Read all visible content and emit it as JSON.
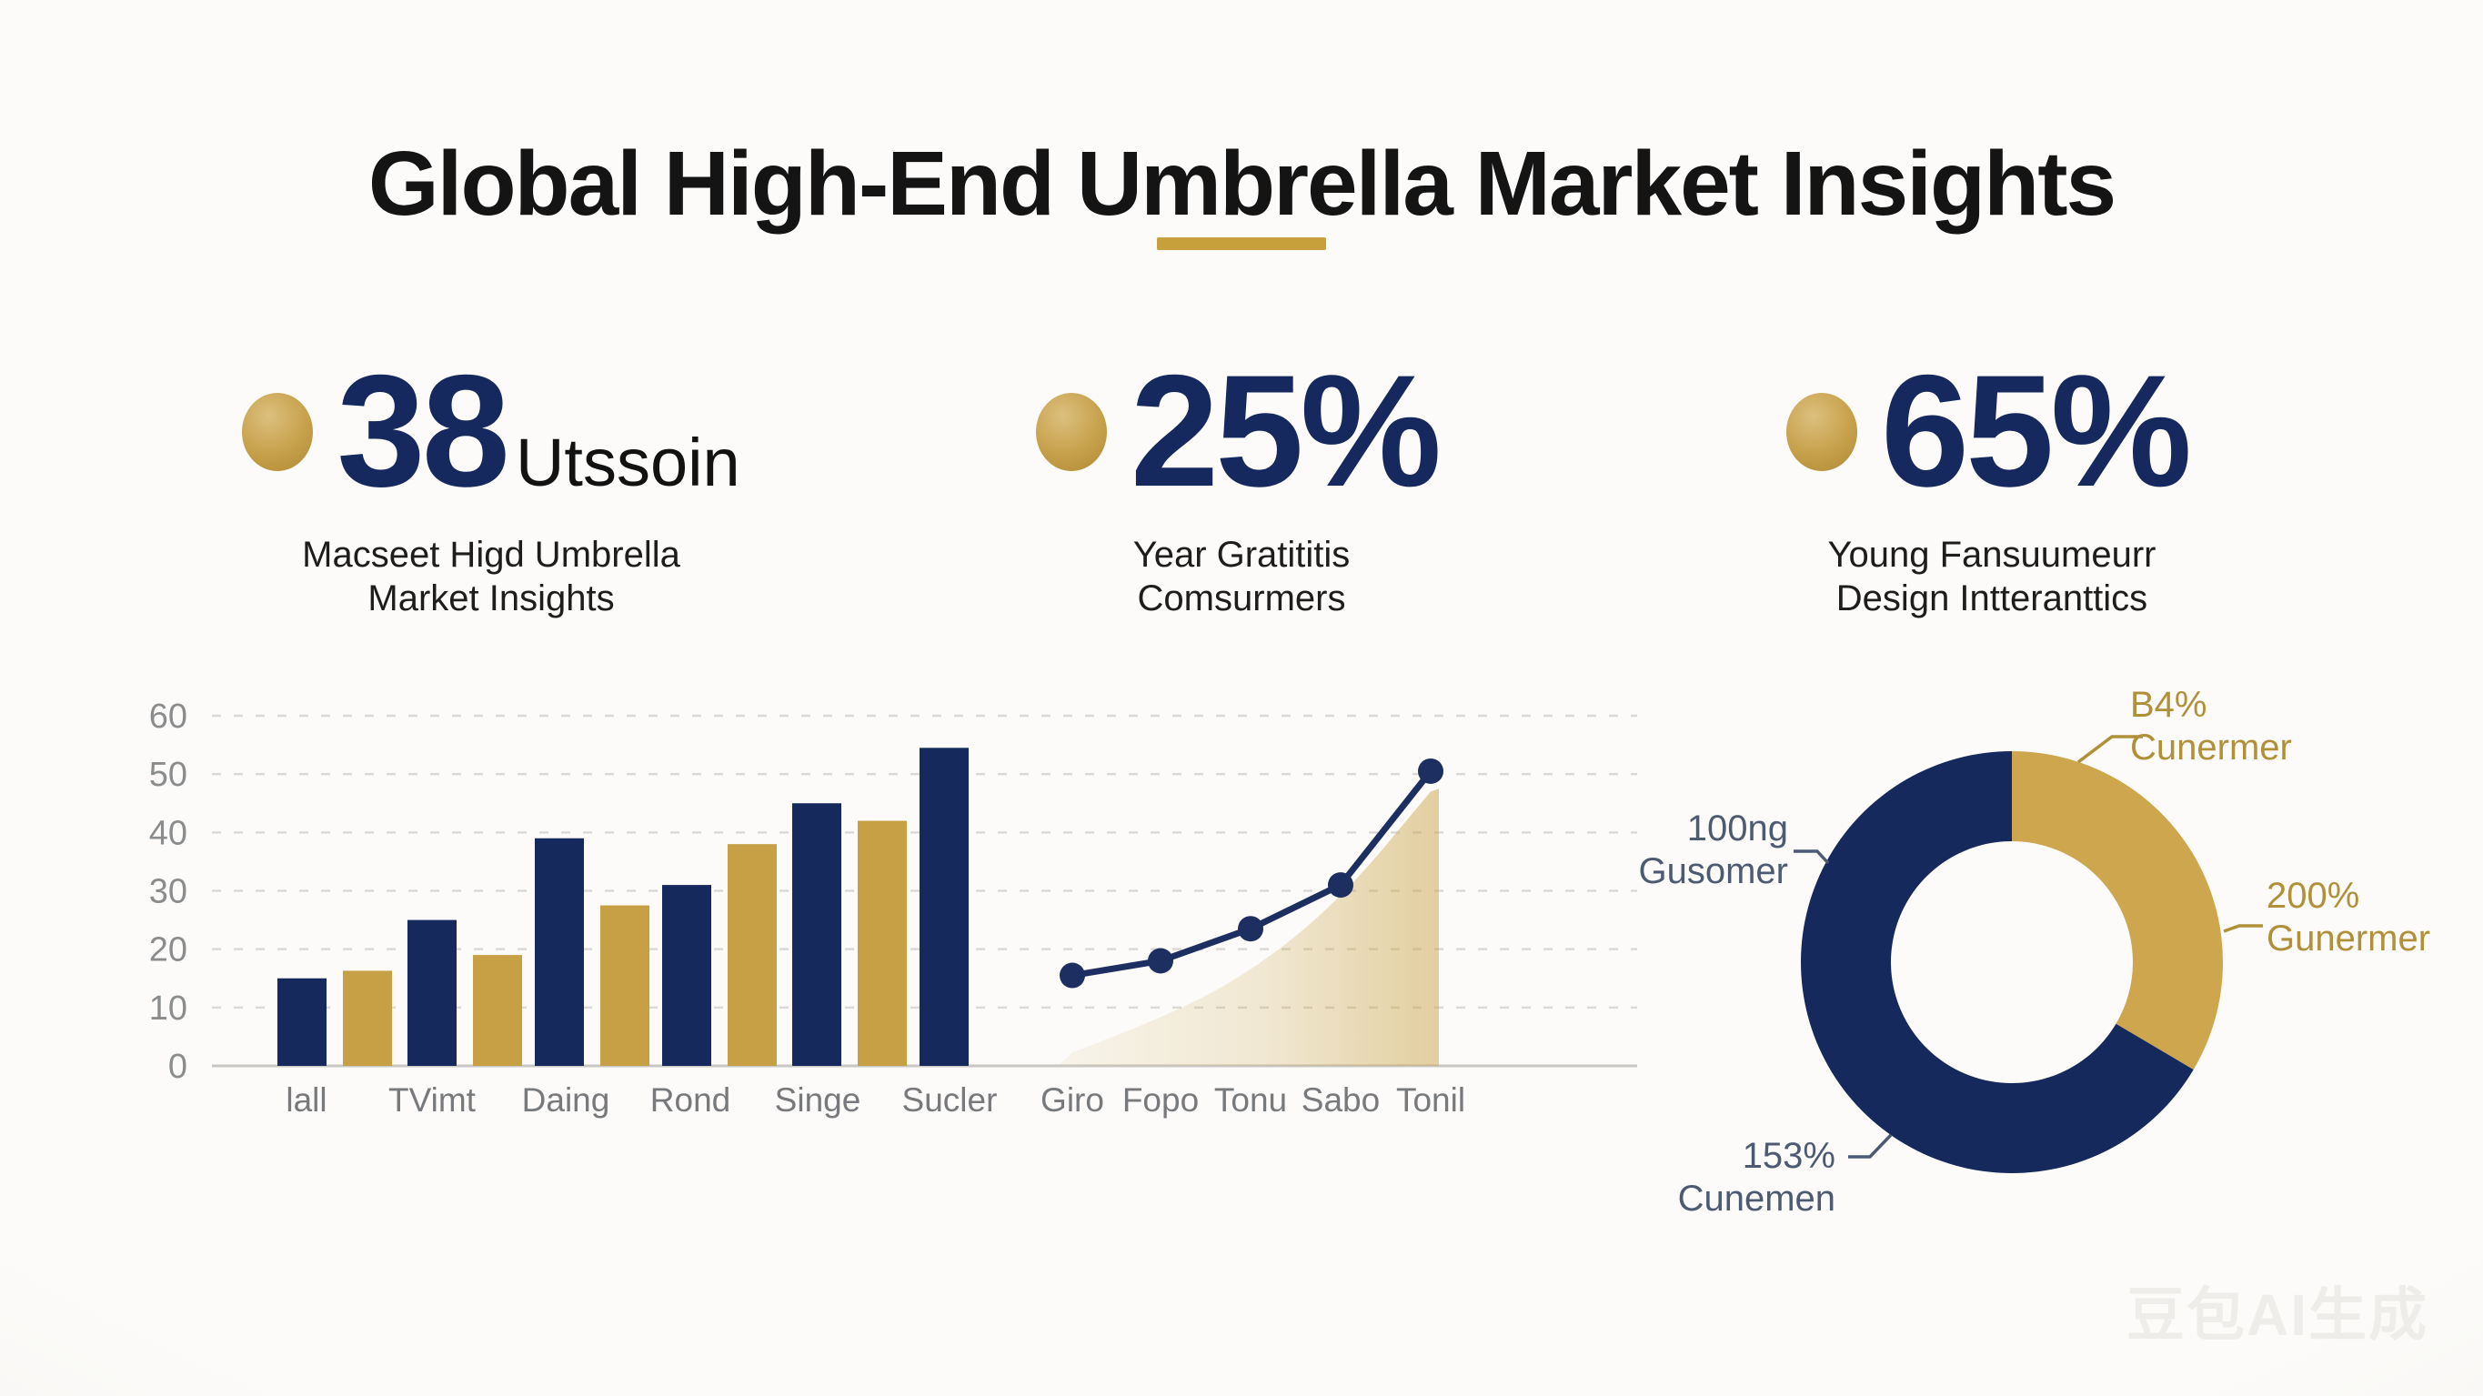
{
  "title": "Global High-End Umbrella Market Insights",
  "stats": [
    {
      "value": "38",
      "unit": "Utssoin",
      "label_line1": "Macseet Higd Umbrella",
      "label_line2": "Market Insights"
    },
    {
      "value": "25%",
      "unit": "",
      "label_line1": "Year Gratititis",
      "label_line2": "Comsurmers"
    },
    {
      "value": "65%",
      "unit": "",
      "label_line1": "Young Fansuumeurr",
      "label_line2": "Design Intteranttics"
    }
  ],
  "chart_data": [
    {
      "type": "bar",
      "title": "",
      "categories": [
        "lall",
        "TVimt",
        "Daing",
        "Rond",
        "Singe",
        "Sucler"
      ],
      "series": [
        {
          "name": "navy",
          "color": "#16295c",
          "values": [
            15,
            25,
            39,
            31,
            45,
            54.5
          ]
        },
        {
          "name": "gold",
          "color": "#c7a045",
          "values": [
            16.3,
            19,
            27.5,
            38,
            42,
            null
          ]
        }
      ],
      "ylim": [
        0,
        60
      ],
      "yticks": [
        0,
        10,
        20,
        30,
        40,
        50,
        60
      ],
      "grid": "horizontal-dashed",
      "legend": "none"
    },
    {
      "type": "line",
      "title": "",
      "categories": [
        "Giro",
        "Fopo",
        "Tonu",
        "Sabo",
        "Tonil"
      ],
      "series": [
        {
          "name": "line",
          "color": "#1d2f60",
          "marker": "circle",
          "values": [
            15.5,
            18,
            23.5,
            31,
            50.5
          ]
        },
        {
          "name": "area",
          "color": "#c9a246",
          "values": [
            2.3,
            8,
            16,
            28.5,
            47
          ]
        }
      ],
      "ylim": [
        0,
        60
      ],
      "grid": "shared-with-bar-chart",
      "legend": "none"
    },
    {
      "type": "pie",
      "title": "",
      "segments": [
        {
          "name": "gold",
          "color": "#cda64d",
          "percent": 33.5
        },
        {
          "name": "navy",
          "color": "#16295c",
          "percent": 66.5
        }
      ],
      "callouts": [
        {
          "value": "B4%",
          "label": "Cunermer",
          "color": "#b09038",
          "position": "top-right"
        },
        {
          "value": "200%",
          "label": "Gunermer",
          "color": "#b09038",
          "position": "right"
        },
        {
          "value": "100ng",
          "label": "Gusomer",
          "color": "#4d5b72",
          "position": "left"
        },
        {
          "value": "153%",
          "label": "Cunemen",
          "color": "#4d5b72",
          "position": "bottom-left"
        }
      ]
    }
  ],
  "colors": {
    "navy": "#16295c",
    "gold": "#c7a045",
    "donut_gold": "#cda64d",
    "underline_gold": "#c7a03c",
    "background": "#f9f8f5"
  },
  "watermark": "豆包AI生成"
}
